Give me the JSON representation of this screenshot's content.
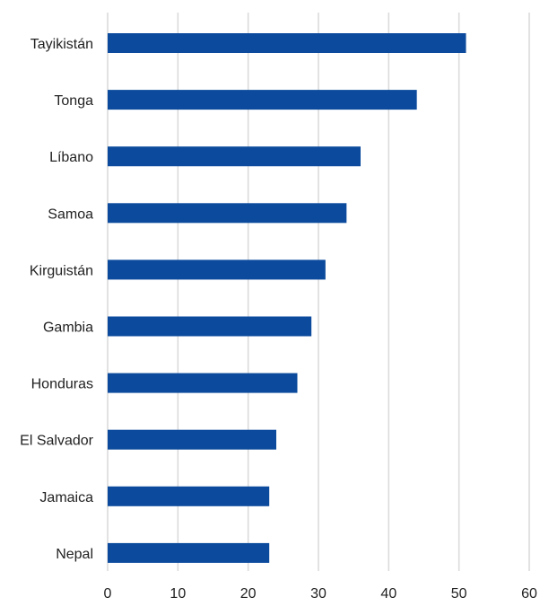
{
  "chart_data": {
    "type": "bar",
    "orientation": "horizontal",
    "title": "",
    "xlabel": "",
    "ylabel": "",
    "categories": [
      "Tayikistán",
      "Tonga",
      "Líbano",
      "Samoa",
      "Kirguistán",
      "Gambia",
      "Honduras",
      "El Salvador",
      "Jamaica",
      "Nepal"
    ],
    "values": [
      51,
      44,
      36,
      34,
      31,
      29,
      27,
      24,
      23,
      23
    ],
    "xlim": [
      0,
      60
    ],
    "x_ticks": [
      0,
      10,
      20,
      30,
      40,
      50,
      60
    ],
    "grid": "vertical",
    "legend": "none",
    "bar_color": "#0b4a9c"
  }
}
